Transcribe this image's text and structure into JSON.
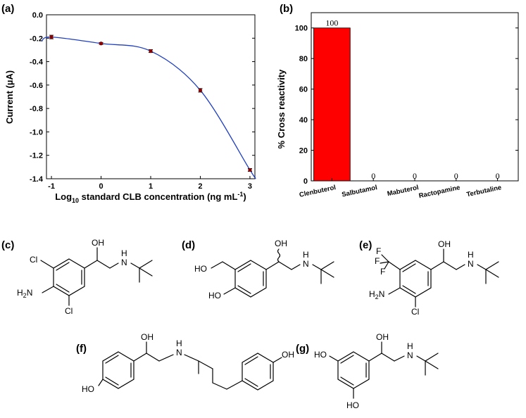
{
  "panels": {
    "a": "(a)",
    "b": "(b)",
    "c": "(c)",
    "d": "(d)",
    "e": "(e)",
    "f": "(f)",
    "g": "(g)"
  },
  "chart_data": [
    {
      "type": "scatter",
      "panel": "(a)",
      "x": [
        -1,
        0,
        1,
        2,
        3
      ],
      "y": [
        -0.19,
        -0.245,
        -0.31,
        -0.645,
        -1.325
      ],
      "error": [
        0.015,
        0.008,
        0.012,
        0.015,
        0.012
      ],
      "fit_curve": true,
      "xlim": [
        -1.1,
        3.1
      ],
      "ylim": [
        -1.4,
        0.0
      ],
      "xticks": [
        "-1",
        "0",
        "1",
        "2",
        "3"
      ],
      "yticks": [
        "0.0",
        "-0.2",
        "-0.4",
        "-0.6",
        "-0.8",
        "-1.0",
        "-1.2",
        "-1.4"
      ],
      "xlabel_main": "Log",
      "xlabel_sub": "10",
      "xlabel_rest": " standard CLB concentration (ng mL",
      "xlabel_sup": "-1",
      "xlabel_end": ")",
      "ylabel": "Current (µA)",
      "colors": {
        "point": "#8b0000",
        "fit": "#1f3fbf"
      }
    },
    {
      "type": "bar",
      "panel": "(b)",
      "categories": [
        "Clenbuterol",
        "Salbutamol",
        "Mabuterol",
        "Ractopamine",
        "Terbutaline"
      ],
      "values": [
        100,
        0,
        0,
        0,
        0
      ],
      "value_labels": [
        "100",
        "0",
        "0",
        "0",
        "0"
      ],
      "ylim": [
        0,
        110
      ],
      "yticks": [
        "0",
        "20",
        "40",
        "60",
        "80",
        "100"
      ],
      "ylabel": "% Cross reactivity",
      "colors": {
        "bar": "#ff0000"
      }
    }
  ],
  "structures": {
    "c": {
      "cl1": "Cl",
      "cl2": "Cl",
      "nh2": "H",
      "nh2_sub": "2",
      "nh2_n": "N",
      "oh": "OH",
      "nh": "N",
      "h": "H"
    },
    "d": {
      "ho1": "HO",
      "ho2": "HO",
      "oh": "OH",
      "nh": "N",
      "h": "H"
    },
    "e": {
      "f1": "F",
      "f2": "F",
      "f3": "F",
      "h2n": "H",
      "h2n_sub": "2",
      "h2n_n": "N",
      "cl": "Cl",
      "oh": "OH",
      "nh": "N",
      "h": "H"
    },
    "f": {
      "oh": "OH",
      "nh": "N",
      "h": "H",
      "ho": "HO",
      "oh2": "OH"
    },
    "g": {
      "ho1": "HO",
      "ho2": "HO",
      "oh": "OH",
      "nh": "N",
      "h": "H"
    }
  }
}
